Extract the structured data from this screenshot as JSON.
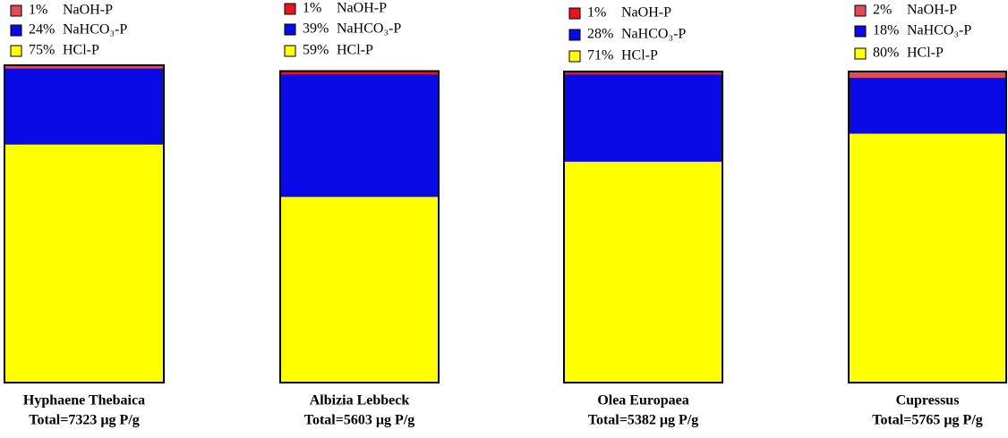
{
  "chart_data": [
    {
      "type": "bar",
      "title": "Hyphaene Thebaica",
      "subtitle": "Total=7323 µg P/g",
      "ylim": [
        0,
        100
      ],
      "series": [
        {
          "name": "NaOH-P",
          "color": "#e24a58",
          "values": [
            1
          ],
          "value_labels": [
            "1%"
          ]
        },
        {
          "name": "NaHCO₃-P",
          "color": "#0a0ae6",
          "values": [
            24
          ],
          "value_labels": [
            "24%"
          ]
        },
        {
          "name": "HCl-P",
          "color": "#ffff00",
          "values": [
            75
          ],
          "value_labels": [
            "75%"
          ]
        }
      ]
    },
    {
      "type": "bar",
      "title": "Albizia Lebbeck",
      "subtitle": "Total=5603 µg P/g",
      "ylim": [
        0,
        100
      ],
      "series": [
        {
          "name": "NaOH-P",
          "color": "#e8141e",
          "values": [
            1
          ],
          "value_labels": [
            "1%"
          ]
        },
        {
          "name": "NaHCO₃-P",
          "color": "#0a0ae6",
          "values": [
            39
          ],
          "value_labels": [
            "39%"
          ]
        },
        {
          "name": "HCl-P",
          "color": "#ffff00",
          "values": [
            59
          ],
          "value_labels": [
            "59%"
          ]
        }
      ]
    },
    {
      "type": "bar",
      "title": "Olea Europaea",
      "subtitle": "Total=5382 µg P/g",
      "ylim": [
        0,
        100
      ],
      "series": [
        {
          "name": "NaOH-P",
          "color": "#e8141e",
          "values": [
            1
          ],
          "value_labels": [
            "1%"
          ]
        },
        {
          "name": "NaHCO₃-P",
          "color": "#0a0ae6",
          "values": [
            28
          ],
          "value_labels": [
            "28%"
          ]
        },
        {
          "name": "HCl-P",
          "color": "#ffff00",
          "values": [
            71
          ],
          "value_labels": [
            "71%"
          ]
        }
      ]
    },
    {
      "type": "bar",
      "title": "Cupressus",
      "subtitle": "Total=5765 µg P/g",
      "ylim": [
        0,
        100
      ],
      "series": [
        {
          "name": "NaOH-P",
          "color": "#e24a58",
          "values": [
            2
          ],
          "value_labels": [
            "2%"
          ]
        },
        {
          "name": "NaHCO₃-P",
          "color": "#0a0ae6",
          "values": [
            18
          ],
          "value_labels": [
            "18%"
          ]
        },
        {
          "name": "HCl-P",
          "color": "#ffff00",
          "values": [
            80
          ],
          "value_labels": [
            "80%"
          ]
        }
      ]
    }
  ]
}
